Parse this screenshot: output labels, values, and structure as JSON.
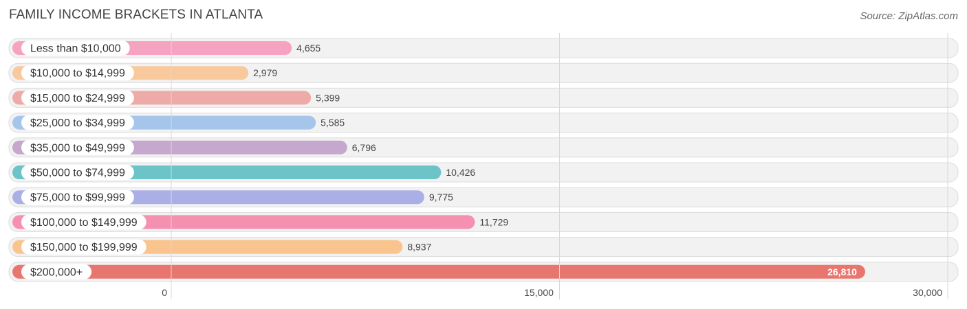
{
  "chart_data": {
    "type": "bar",
    "orientation": "horizontal",
    "title": "FAMILY INCOME BRACKETS IN ATLANTA",
    "source": "Source: ZipAtlas.com",
    "categories": [
      "Less than $10,000",
      "$10,000 to $14,999",
      "$15,000 to $24,999",
      "$25,000 to $34,999",
      "$35,000 to $49,999",
      "$50,000 to $74,999",
      "$75,000 to $99,999",
      "$100,000 to $149,999",
      "$150,000 to $199,999",
      "$200,000+"
    ],
    "values": [
      4655,
      2979,
      5399,
      5585,
      6796,
      10426,
      9775,
      11729,
      8937,
      26810
    ],
    "value_labels": [
      "4,655",
      "2,979",
      "5,399",
      "5,585",
      "6,796",
      "10,426",
      "9,775",
      "11,729",
      "8,937",
      "26,810"
    ],
    "colors": [
      "#f5a3c0",
      "#f9c99e",
      "#eeaaa6",
      "#a6c5ea",
      "#c6a7cd",
      "#6cc3c8",
      "#aab0e6",
      "#f590b0",
      "#f9c48d",
      "#e8766f"
    ],
    "xlim": [
      0,
      30000
    ],
    "xticks": [
      0,
      15000,
      30000
    ],
    "xtick_labels": [
      "0",
      "15,000",
      "30,000"
    ],
    "xlabel": "",
    "ylabel": "",
    "grid": true
  }
}
